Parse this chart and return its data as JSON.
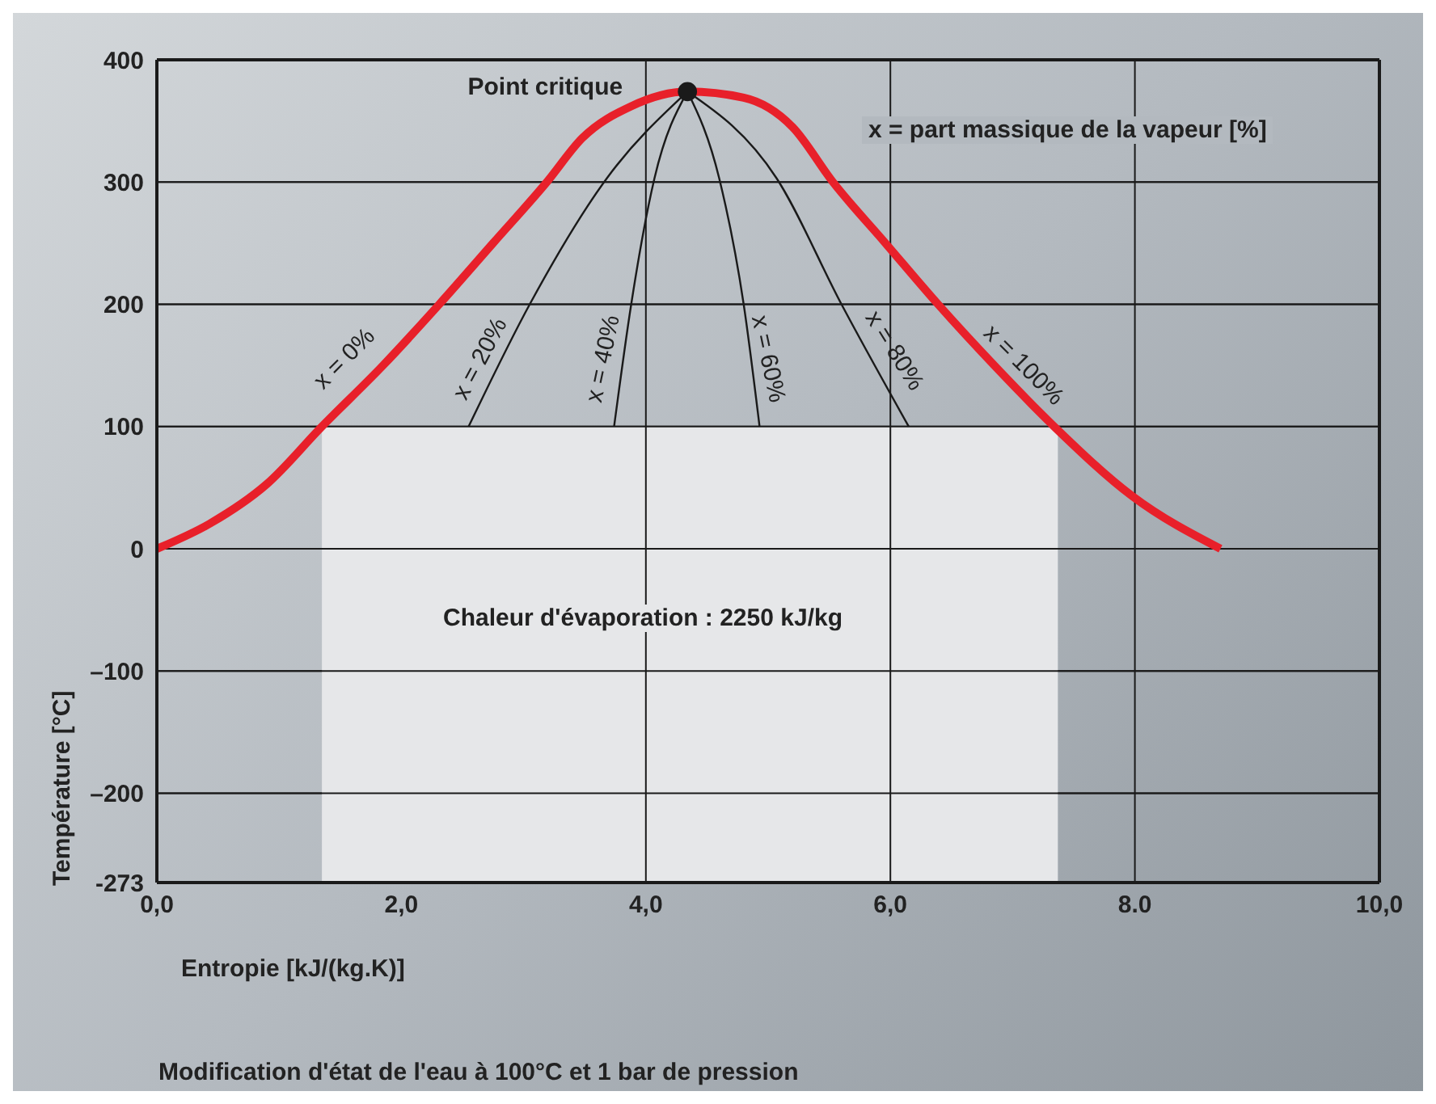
{
  "chart_data": {
    "type": "line",
    "xlabel": "Entropie [kJ/(kg.K)]",
    "ylabel": "Température [°C]",
    "xlim": [
      0,
      10
    ],
    "xticks": [
      {
        "value": 0,
        "label": "0,0"
      },
      {
        "value": 2,
        "label": "2,0"
      },
      {
        "value": 4,
        "label": "4,0"
      },
      {
        "value": 6,
        "label": "6,0"
      },
      {
        "value": 8,
        "label": "8.0"
      },
      {
        "value": 10,
        "label": "10,0"
      }
    ],
    "ylim": [
      -273,
      400
    ],
    "yticks": [
      -273,
      {
        "value": -200,
        "label": "–200"
      },
      {
        "value": -100,
        "label": "–100"
      },
      0,
      100,
      200,
      300,
      400
    ],
    "grid": "y",
    "legend": false,
    "ref_lines": [
      {
        "axis": "x",
        "value": 4,
        "color": "#1a1a1a"
      },
      {
        "axis": "x",
        "value": 6,
        "color": "#1a1a1a"
      },
      {
        "axis": "x",
        "value": 8,
        "color": "#1a1a1a"
      }
    ],
    "series": [
      {
        "type": "area",
        "color": "#e6e7e9",
        "x": [
          1.35,
          1.35,
          7.37,
          7.37
        ],
        "values": [
          -273,
          100,
          100,
          -273
        ]
      },
      {
        "color": "#1a1a1a",
        "x": [
          2.55,
          3.05,
          3.68,
          4.34
        ],
        "values": [
          100,
          200,
          303,
          374
        ]
      },
      {
        "color": "#1a1a1a",
        "x": [
          3.74,
          3.88,
          4.07,
          4.34
        ],
        "values": [
          100,
          200,
          303,
          374
        ]
      },
      {
        "color": "#1a1a1a",
        "x": [
          4.93,
          4.8,
          4.6,
          4.34
        ],
        "values": [
          100,
          200,
          303,
          374
        ]
      },
      {
        "color": "#1a1a1a",
        "x": [
          6.15,
          5.6,
          5.07,
          4.34
        ],
        "values": [
          100,
          200,
          303,
          374
        ]
      },
      {
        "color": "#e8202a",
        "x": [
          0,
          0.44,
          0.9,
          1.35,
          1.85,
          2.31,
          2.75,
          3.19,
          3.48,
          3.88,
          4.34,
          4.8,
          5.2,
          5.53,
          5.96,
          6.39,
          6.85,
          7.34,
          7.98,
          8.7
        ],
        "values": [
          0,
          21,
          53,
          100,
          150,
          200,
          250,
          300,
          336,
          362,
          374,
          369,
          345,
          300,
          250,
          200,
          150,
          100,
          43,
          0
        ]
      },
      {
        "type": "scatter",
        "color": "#1a1a1a",
        "marker": "circle",
        "x": [
          4.34
        ],
        "values": [
          374
        ]
      }
    ],
    "annotations": [
      "x = 0%",
      "x = 20%",
      "x = 40%",
      "x = 60%",
      "x = 80%",
      "x = 100%",
      {
        "text": "Point critique",
        "x": 4.34,
        "y": 374
      },
      "x = part massique de la vapeur [%]",
      "Chaleur d'évaporation : 2250 kJ/kg",
      "Modification d'état de l'eau à 100°C et 1 bar de pression"
    ]
  }
}
